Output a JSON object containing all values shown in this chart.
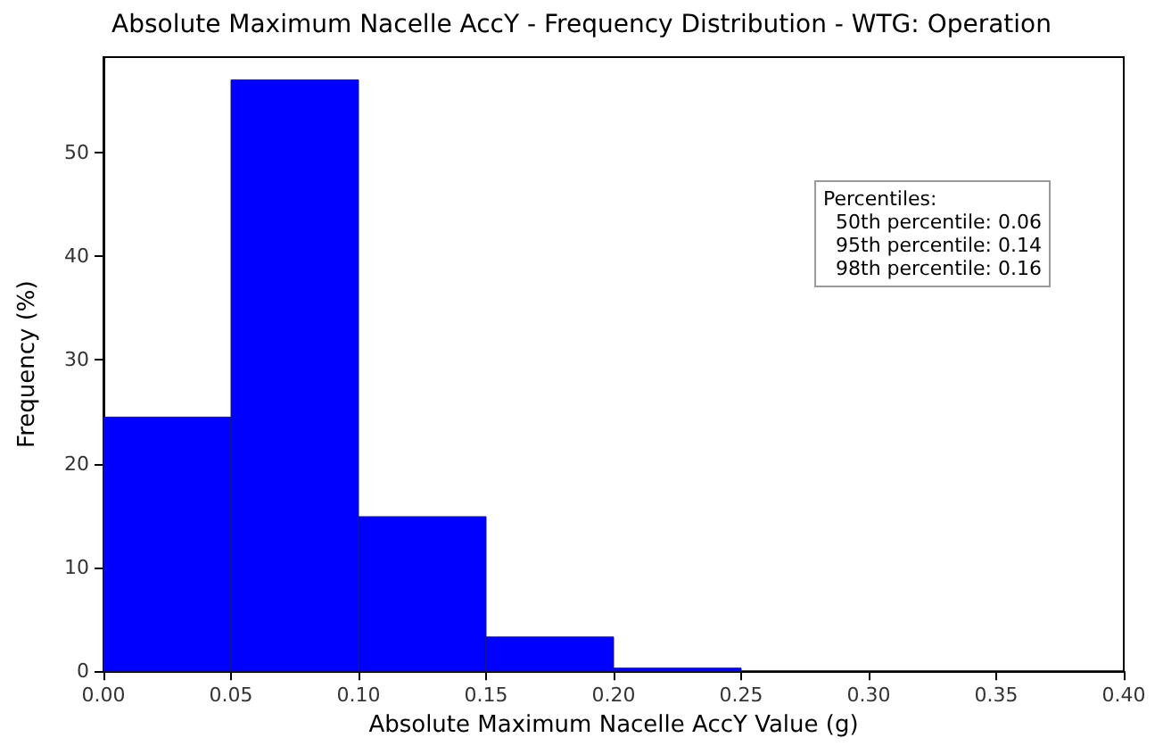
{
  "chart_data": {
    "type": "histogram",
    "title": "Absolute Maximum Nacelle AccY - Frequency Distribution - WTG: Operation",
    "xlabel": "Absolute Maximum Nacelle AccY Value (g)",
    "ylabel": "Frequency (%)",
    "bins": [
      0,
      0.05,
      0.1,
      0.15,
      0.2,
      0.25
    ],
    "values": [
      24.5,
      57,
      14.9,
      3.3,
      0.3
    ],
    "color": "#0000ff",
    "xlim": [
      0,
      0.4
    ],
    "xticks": [
      {
        "value": 0,
        "label": "0.00"
      },
      {
        "value": 0.05,
        "label": "0.05"
      },
      {
        "value": 0.1,
        "label": "0.10"
      },
      {
        "value": 0.15,
        "label": "0.15"
      },
      {
        "value": 0.2,
        "label": "0.20"
      },
      {
        "value": 0.25,
        "label": "0.25"
      },
      {
        "value": 0.3,
        "label": "0.30"
      },
      {
        "value": 0.35,
        "label": "0.35"
      },
      {
        "value": 0.4,
        "label": "0.40"
      }
    ],
    "ylim": [
      0,
      59.2
    ],
    "yticks": [
      0,
      10,
      20,
      30,
      40,
      50
    ],
    "grid": false,
    "annotations": [
      "Percentiles:",
      "  50th percentile: 0.06",
      "  95th percentile: 0.14",
      "  98th percentile: 0.16"
    ]
  }
}
